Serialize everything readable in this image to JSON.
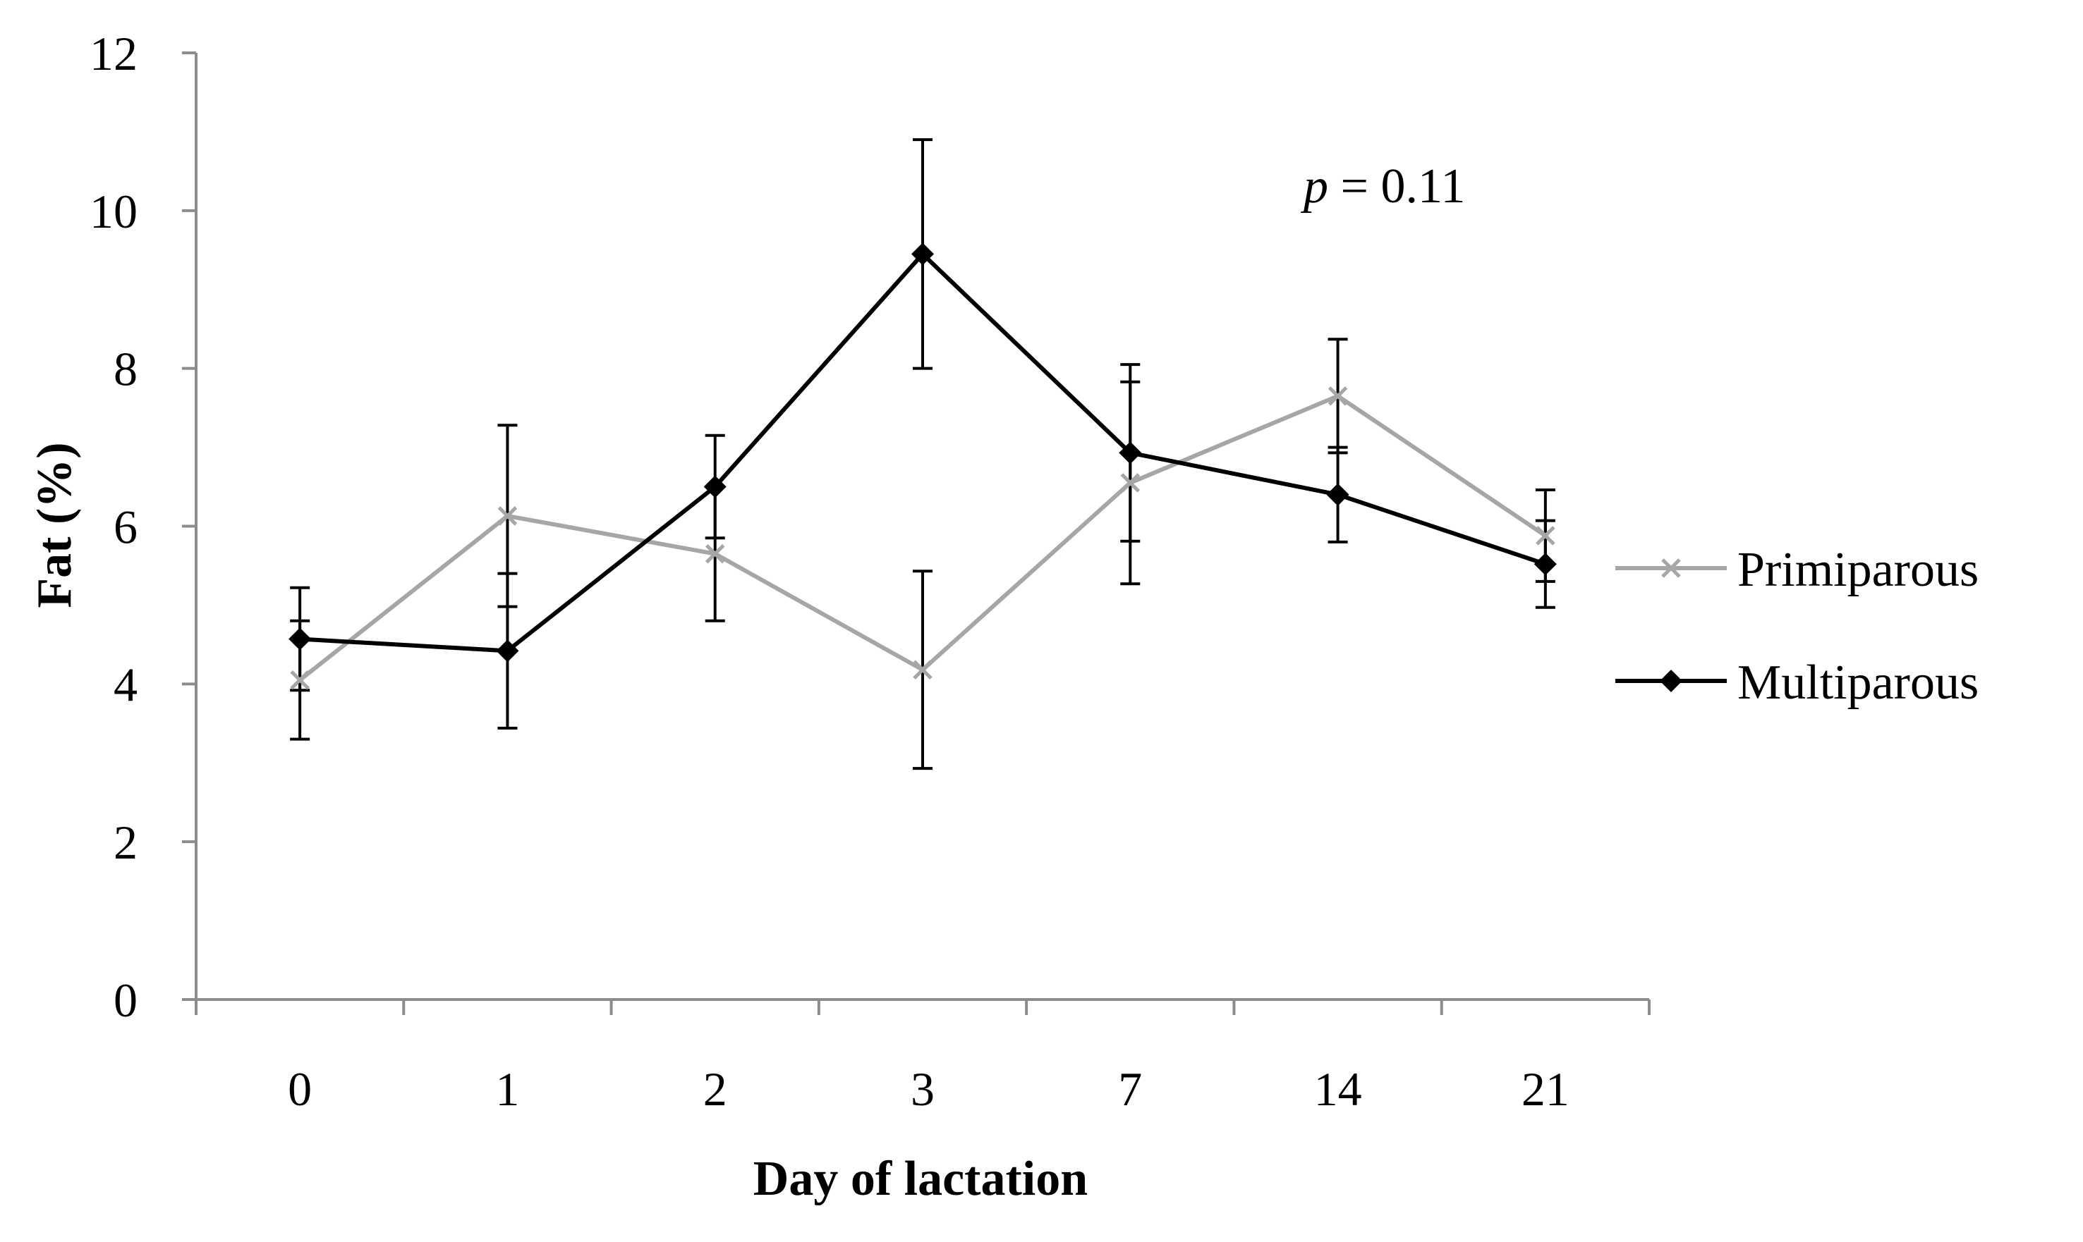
{
  "chart_data": {
    "type": "line",
    "title": "",
    "xlabel": "Day of lactation",
    "ylabel": "Fat (%)",
    "categories": [
      "0",
      "1",
      "2",
      "3",
      "7",
      "14",
      "21"
    ],
    "ylim": [
      0,
      12
    ],
    "yticks": [
      "0",
      "2",
      "4",
      "6",
      "8",
      "10",
      "12"
    ],
    "grid": false,
    "legend_position": "right",
    "annotation": {
      "p_symbol": "p",
      "text": " = 0.11"
    },
    "series": [
      {
        "name": "Primiparous",
        "color": "#a6a6a6",
        "marker": "x",
        "values": [
          4.05,
          6.13,
          5.65,
          4.18,
          6.55,
          7.65,
          5.88
        ],
        "error": [
          0.75,
          1.15,
          0.85,
          1.25,
          1.28,
          0.72,
          0.58
        ]
      },
      {
        "name": "Multiparous",
        "color": "#000000",
        "marker": "diamond",
        "values": [
          4.57,
          4.42,
          6.5,
          9.45,
          6.93,
          6.4,
          5.52
        ],
        "error": [
          0.65,
          0.98,
          0.65,
          1.45,
          1.12,
          0.6,
          0.55
        ]
      }
    ]
  }
}
